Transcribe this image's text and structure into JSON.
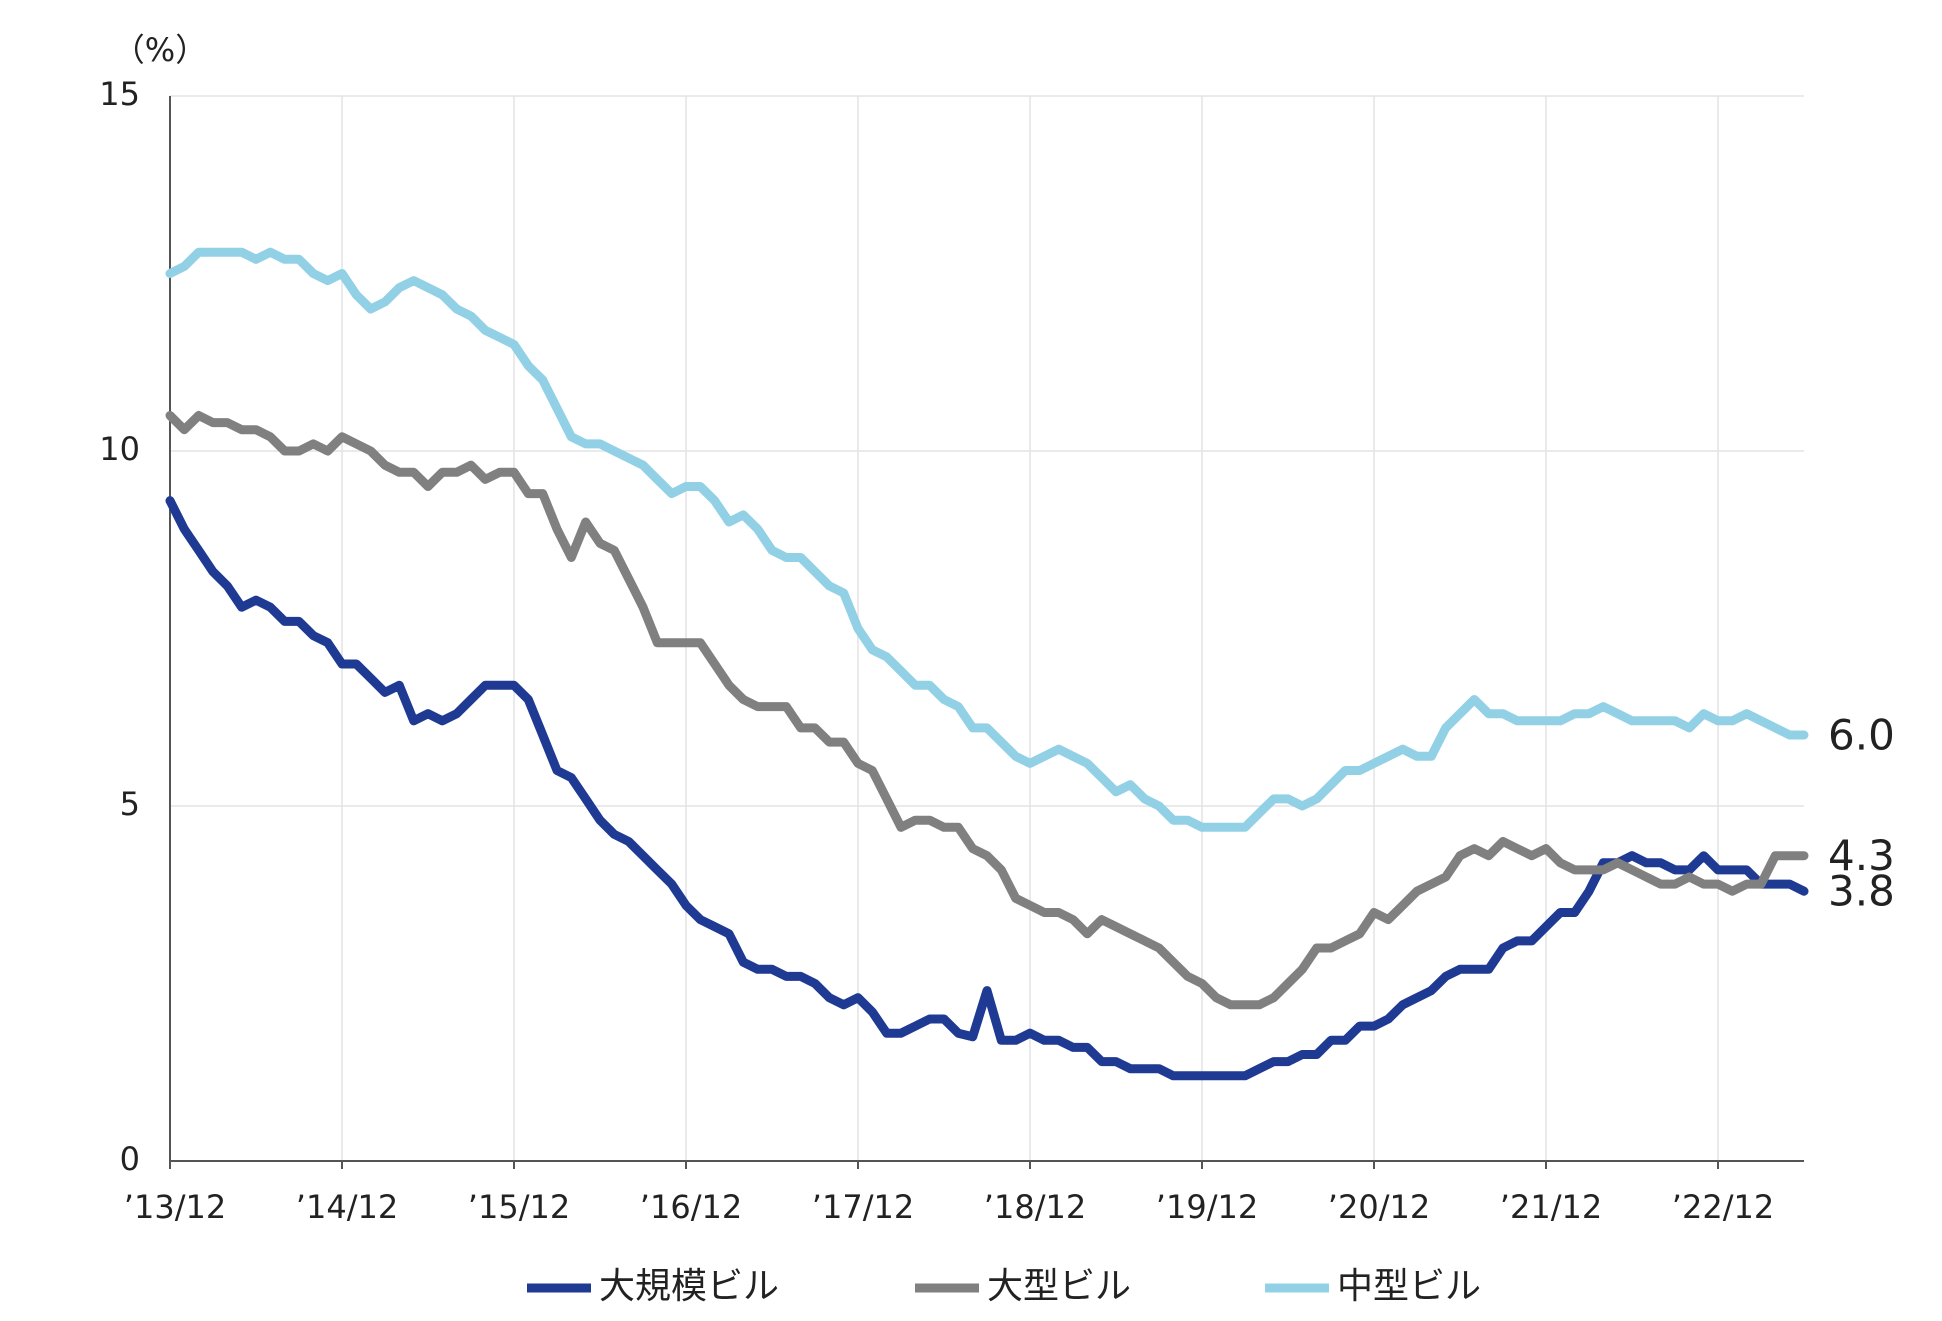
{
  "chart_data": {
    "type": "line",
    "unit_label": "（%）",
    "categories": [
      "’13/12",
      null,
      null,
      null,
      null,
      null,
      null,
      null,
      null,
      null,
      null,
      null,
      "’14/12",
      null,
      null,
      null,
      null,
      null,
      null,
      null,
      null,
      null,
      null,
      null,
      "’15/12",
      null,
      null,
      null,
      null,
      null,
      null,
      null,
      null,
      null,
      null,
      null,
      "’16/12",
      null,
      null,
      null,
      null,
      null,
      null,
      null,
      null,
      null,
      null,
      null,
      "’17/12",
      null,
      null,
      null,
      null,
      null,
      null,
      null,
      null,
      null,
      null,
      null,
      "’18/12",
      null,
      null,
      null,
      null,
      null,
      null,
      null,
      null,
      null,
      null,
      null,
      "’19/12",
      null,
      null,
      null,
      null,
      null,
      null,
      null,
      null,
      null,
      null,
      null,
      "’20/12",
      null,
      null,
      null,
      null,
      null,
      null,
      null,
      null,
      null,
      null,
      null,
      "’21/12",
      null,
      null,
      null,
      null,
      null,
      null,
      null,
      null,
      null,
      null,
      null,
      "’22/12",
      null,
      null,
      null,
      null,
      null,
      null
    ],
    "series": [
      {
        "name": "大規模ビル",
        "color": "#1f3a93",
        "label_color": "#1f3a93",
        "values": [
          9.3,
          8.9,
          8.6,
          8.3,
          8.1,
          7.8,
          7.9,
          7.8,
          7.6,
          7.6,
          7.4,
          7.3,
          7.0,
          7.0,
          6.8,
          6.6,
          6.7,
          6.2,
          6.3,
          6.2,
          6.3,
          6.5,
          6.7,
          6.7,
          6.7,
          6.5,
          6.0,
          5.5,
          5.4,
          5.1,
          4.8,
          4.6,
          4.5,
          4.3,
          4.1,
          3.9,
          3.6,
          3.4,
          3.3,
          3.2,
          2.8,
          2.7,
          2.7,
          2.6,
          2.6,
          2.5,
          2.3,
          2.2,
          2.3,
          2.1,
          1.8,
          1.8,
          1.9,
          2.0,
          2.0,
          1.8,
          1.75,
          2.4,
          1.7,
          1.7,
          1.8,
          1.7,
          1.7,
          1.6,
          1.6,
          1.4,
          1.4,
          1.3,
          1.3,
          1.3,
          1.2,
          1.2,
          1.2,
          1.2,
          1.2,
          1.2,
          1.3,
          1.4,
          1.4,
          1.5,
          1.5,
          1.7,
          1.7,
          1.9,
          1.9,
          2.0,
          2.2,
          2.3,
          2.4,
          2.6,
          2.7,
          2.7,
          2.7,
          3.0,
          3.1,
          3.1,
          3.3,
          3.5,
          3.5,
          3.8,
          4.2,
          4.2,
          4.3,
          4.2,
          4.2,
          4.1,
          4.1,
          4.3,
          4.1,
          4.1,
          4.1,
          3.9,
          3.9,
          3.9,
          3.8
        ],
        "value_labels": [
          null,
          null,
          null,
          null,
          null,
          null,
          null,
          null,
          null,
          null,
          null,
          null,
          null,
          null,
          null,
          null,
          null,
          null,
          null,
          null,
          null,
          null,
          null,
          null,
          null,
          null,
          null,
          null,
          null,
          null,
          null,
          null,
          null,
          null,
          null,
          null,
          null,
          null,
          null,
          null,
          null,
          null,
          null,
          null,
          null,
          null,
          null,
          null,
          null,
          null,
          null,
          null,
          null,
          null,
          null,
          null,
          null,
          null,
          null,
          null,
          null,
          null,
          null,
          null,
          null,
          null,
          null,
          null,
          null,
          null,
          null,
          null,
          null,
          null,
          null,
          null,
          null,
          null,
          null,
          null,
          null,
          null,
          null,
          null,
          null,
          null,
          null,
          null,
          null,
          null,
          null,
          null,
          null,
          null,
          null,
          null,
          null,
          null,
          null,
          null,
          null,
          null,
          null,
          null,
          null,
          null,
          null,
          null,
          null,
          null,
          null,
          null,
          null,
          null,
          "3.8"
        ]
      },
      {
        "name": "大型ビル",
        "color": "#808080",
        "label_color": "#808080",
        "values": [
          10.5,
          10.3,
          10.5,
          10.4,
          10.4,
          10.3,
          10.3,
          10.2,
          10.0,
          10.0,
          10.1,
          10.0,
          10.2,
          10.1,
          10.0,
          9.8,
          9.7,
          9.7,
          9.5,
          9.7,
          9.7,
          9.8,
          9.6,
          9.7,
          9.7,
          9.4,
          9.4,
          8.9,
          8.5,
          9.0,
          8.7,
          8.6,
          8.2,
          7.8,
          7.3,
          7.3,
          7.3,
          7.3,
          7.0,
          6.7,
          6.5,
          6.4,
          6.4,
          6.4,
          6.1,
          6.1,
          5.9,
          5.9,
          5.6,
          5.5,
          5.1,
          4.7,
          4.8,
          4.8,
          4.7,
          4.7,
          4.4,
          4.3,
          4.1,
          3.7,
          3.6,
          3.5,
          3.5,
          3.4,
          3.2,
          3.4,
          3.3,
          3.2,
          3.1,
          3.0,
          2.8,
          2.6,
          2.5,
          2.3,
          2.2,
          2.2,
          2.2,
          2.3,
          2.5,
          2.7,
          3.0,
          3.0,
          3.1,
          3.2,
          3.5,
          3.4,
          3.6,
          3.8,
          3.9,
          4.0,
          4.3,
          4.4,
          4.3,
          4.5,
          4.4,
          4.3,
          4.4,
          4.2,
          4.1,
          4.1,
          4.1,
          4.2,
          4.1,
          4.0,
          3.9,
          3.9,
          4.0,
          3.9,
          3.9,
          3.8,
          3.9,
          3.9,
          4.3,
          4.3,
          4.3
        ],
        "value_labels": [
          null,
          null,
          null,
          null,
          null,
          null,
          null,
          null,
          null,
          null,
          null,
          null,
          null,
          null,
          null,
          null,
          null,
          null,
          null,
          null,
          null,
          null,
          null,
          null,
          null,
          null,
          null,
          null,
          null,
          null,
          null,
          null,
          null,
          null,
          null,
          null,
          null,
          null,
          null,
          null,
          null,
          null,
          null,
          null,
          null,
          null,
          null,
          null,
          null,
          null,
          null,
          null,
          null,
          null,
          null,
          null,
          null,
          null,
          null,
          null,
          null,
          null,
          null,
          null,
          null,
          null,
          null,
          null,
          null,
          null,
          null,
          null,
          null,
          null,
          null,
          null,
          null,
          null,
          null,
          null,
          null,
          null,
          null,
          null,
          null,
          null,
          null,
          null,
          null,
          null,
          null,
          null,
          null,
          null,
          null,
          null,
          null,
          null,
          null,
          null,
          null,
          null,
          null,
          null,
          null,
          null,
          null,
          null,
          null,
          null,
          null,
          null,
          null,
          null,
          "4.3"
        ]
      },
      {
        "name": "中型ビル",
        "color": "#92d0e6",
        "label_color": "#4aaed0",
        "values": [
          12.5,
          12.6,
          12.8,
          12.8,
          12.8,
          12.8,
          12.7,
          12.8,
          12.7,
          12.7,
          12.5,
          12.4,
          12.5,
          12.2,
          12.0,
          12.1,
          12.3,
          12.4,
          12.3,
          12.2,
          12.0,
          11.9,
          11.7,
          11.6,
          11.5,
          11.2,
          11.0,
          10.6,
          10.2,
          10.1,
          10.1,
          10.0,
          9.9,
          9.8,
          9.6,
          9.4,
          9.5,
          9.5,
          9.3,
          9.0,
          9.1,
          8.9,
          8.6,
          8.5,
          8.5,
          8.3,
          8.1,
          8.0,
          7.5,
          7.2,
          7.1,
          6.9,
          6.7,
          6.7,
          6.5,
          6.4,
          6.1,
          6.1,
          5.9,
          5.7,
          5.6,
          5.7,
          5.8,
          5.7,
          5.6,
          5.4,
          5.2,
          5.3,
          5.1,
          5.0,
          4.8,
          4.8,
          4.7,
          4.7,
          4.7,
          4.7,
          4.9,
          5.1,
          5.1,
          5.0,
          5.1,
          5.3,
          5.5,
          5.5,
          5.6,
          5.7,
          5.8,
          5.7,
          5.7,
          6.1,
          6.3,
          6.5,
          6.3,
          6.3,
          6.2,
          6.2,
          6.2,
          6.2,
          6.3,
          6.3,
          6.4,
          6.3,
          6.2,
          6.2,
          6.2,
          6.2,
          6.1,
          6.3,
          6.2,
          6.2,
          6.3,
          6.2,
          6.1,
          6.0,
          6.0
        ],
        "value_labels": [
          null,
          null,
          null,
          null,
          null,
          null,
          null,
          null,
          null,
          null,
          null,
          null,
          null,
          null,
          null,
          null,
          null,
          null,
          null,
          null,
          null,
          null,
          null,
          null,
          null,
          null,
          null,
          null,
          null,
          null,
          null,
          null,
          null,
          null,
          null,
          null,
          null,
          null,
          null,
          null,
          null,
          null,
          null,
          null,
          null,
          null,
          null,
          null,
          null,
          null,
          null,
          null,
          null,
          null,
          null,
          null,
          null,
          null,
          null,
          null,
          null,
          null,
          null,
          null,
          null,
          null,
          null,
          null,
          null,
          null,
          null,
          null,
          null,
          null,
          null,
          null,
          null,
          null,
          null,
          null,
          null,
          null,
          null,
          null,
          null,
          null,
          null,
          null,
          null,
          null,
          null,
          null,
          null,
          null,
          null,
          null,
          null,
          null,
          null,
          null,
          null,
          null,
          null,
          null,
          null,
          null,
          null,
          null,
          null,
          null,
          null,
          null,
          null,
          null,
          "6.0"
        ]
      }
    ],
    "ylim": [
      0,
      15
    ],
    "yticks": [
      0,
      5,
      10,
      15
    ],
    "grid": true,
    "legend": "bottom"
  }
}
